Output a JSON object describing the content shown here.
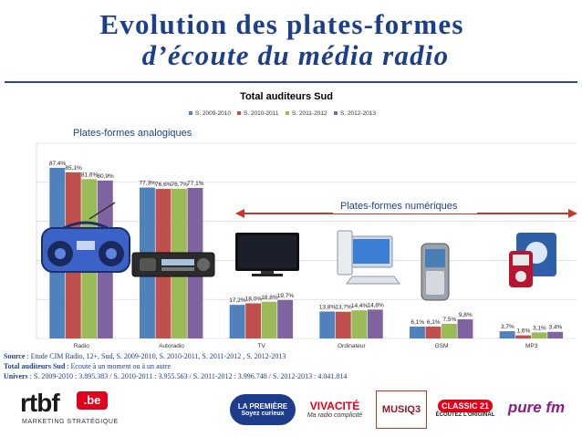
{
  "slide": {
    "title_line1": "Evolution des plates-formes",
    "title_line2": "d’écoute du média radio"
  },
  "chart_data": {
    "type": "bar",
    "title": "Total auditeurs Sud",
    "categories": [
      "Radio",
      "Autoradio",
      "TV",
      "Ordinateur",
      "GSM",
      "MP3"
    ],
    "series": [
      {
        "name": "S. 2009-2010",
        "color": "#c0504d",
        "values": [
          87.4,
          77.3,
          17.2,
          13.8,
          6.1,
          3.7
        ]
      },
      {
        "name": "S. 2010-2011",
        "color": "#c0504d",
        "values": [
          85.1,
          76.6,
          18.0,
          13.7,
          6.1,
          1.6
        ]
      },
      {
        "name": "S. 2011-2012",
        "color": "#9bbb59",
        "values": [
          81.6,
          76.7,
          18.8,
          14.4,
          7.5,
          3.1
        ]
      },
      {
        "name": "S. 2012-2013",
        "color": "#8064a2",
        "values": [
          80.9,
          77.1,
          19.7,
          14.8,
          9.8,
          3.4
        ]
      }
    ],
    "first_bar_color": "#4f81bd",
    "data_labels": [
      [
        "87,4%",
        "85,1%",
        "81,6%",
        "80,9%"
      ],
      [
        "77,3%",
        "76,6%",
        "76,7%",
        "77,1%"
      ],
      [
        "17,2%",
        "18,0%",
        "18,8%",
        "19,7%"
      ],
      [
        "13,8%",
        "13,7%",
        "14,4%",
        "14,8%"
      ],
      [
        "6,1%",
        "6,1%",
        "7,5%",
        "9,8%"
      ],
      [
        "3,7%",
        "1,6%",
        "3,1%",
        "3,4%"
      ]
    ],
    "ylim": [
      0,
      100
    ],
    "grid": true,
    "legend_position": "top"
  },
  "annotations": {
    "analog": "Plates-formes analogiques",
    "digital": "Plates-formes numériques"
  },
  "footer": {
    "source_label": "Source",
    "source_text": " : Etude CIM Radio, 12+, Sud,  S. 2009-2010, S. 2010-2011, S. 2011-2012 , S. 2012-2013",
    "total_label": "Total auditeurs Sud",
    "total_text": " : Ecoute à un moment ou à un autre",
    "univers_label": "Univers",
    "univers_text": " : S. 2009-2010 : 3.895.383  /  S. 2010-2011 : 3.955.563   /  S. 2011-2012 : 3.996.748  /  S. 2012-2013 : 4.041.814"
  },
  "logos": {
    "rtbf": "rtbf",
    "rtbf_be": ".be",
    "rtbf_sub": "MARKETING STRATÉGIQUE",
    "lapremiere": "LA PREMIÈRE",
    "lapremiere_sub": "Soyez curieux",
    "vivacite": "VIVACITÉ",
    "vivacite_sub": "Ma radio complicité",
    "musiq3": "MUSIQ3",
    "classic21": "CLASSIC 21",
    "classic21_sub": "ÉCOUTEZ L'ORIGINAL",
    "purefm": "pure fm"
  }
}
